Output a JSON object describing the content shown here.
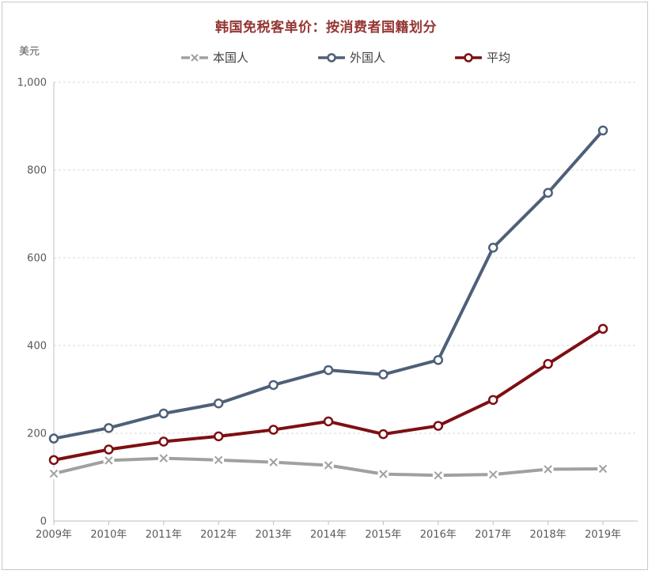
{
  "colors": {
    "title": "#943634",
    "domestic": "#a0a0a0",
    "foreigner": "#4e6078",
    "average": "#7d0f12",
    "axis": "#bfbfbf",
    "grid": "#d9d9d9",
    "tick_text": "#595959",
    "legend_text": "#3f3f3f",
    "border": "#c9c9c9"
  },
  "chart_data": {
    "type": "line",
    "title": "韩国免税客单价：按消费者国籍划分",
    "xlabel": "",
    "ylabel": "美元",
    "x": [
      "2009年",
      "2010年",
      "2011年",
      "2012年",
      "2013年",
      "2014年",
      "2015年",
      "2016年",
      "2017年",
      "2018年",
      "2019年"
    ],
    "series": [
      {
        "name": "本国人",
        "key": "domestic",
        "marker": "x",
        "values": [
          108,
          138,
          143,
          139,
          134,
          127,
          107,
          104,
          106,
          118,
          119
        ]
      },
      {
        "name": "外国人",
        "key": "foreigner",
        "marker": "circle",
        "values": [
          188,
          212,
          245,
          268,
          310,
          344,
          334,
          367,
          623,
          748,
          890
        ]
      },
      {
        "name": "平均",
        "key": "average",
        "marker": "circle",
        "values": [
          139,
          163,
          181,
          193,
          208,
          227,
          198,
          217,
          276,
          358,
          438
        ]
      }
    ],
    "ylim": [
      0,
      1000
    ],
    "yticks": [
      0,
      200,
      400,
      600,
      800,
      1000
    ],
    "ytick_labels": [
      "0",
      "200",
      "400",
      "600",
      "800",
      "1,000"
    ],
    "grid": true,
    "grid_style": "dashed",
    "legend_position": "top"
  }
}
